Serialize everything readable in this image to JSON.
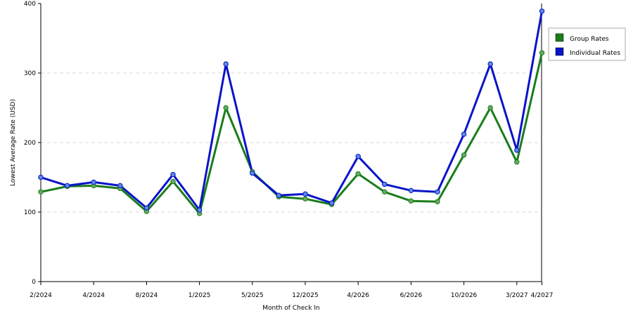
{
  "chart_data": {
    "type": "line",
    "title": "",
    "xlabel": "Month of Check In",
    "ylabel": "Lowest Average Rate (USD)",
    "ylim": [
      0,
      400
    ],
    "yticks": [
      0,
      100,
      200,
      300,
      400
    ],
    "grid": true,
    "legend_position": "right",
    "x_tick_labels": [
      {
        "index": 0,
        "label": "2/2024"
      },
      {
        "index": 2,
        "label": "4/2024"
      },
      {
        "index": 4,
        "label": "8/2024"
      },
      {
        "index": 6,
        "label": "1/2025"
      },
      {
        "index": 8,
        "label": "5/2025"
      },
      {
        "index": 10,
        "label": "12/2025"
      },
      {
        "index": 12,
        "label": "4/2026"
      },
      {
        "index": 14,
        "label": "6/2026"
      },
      {
        "index": 16,
        "label": "10/2026"
      },
      {
        "index": 18,
        "label": "3/2027"
      },
      {
        "index": 19,
        "label": "4/2027"
      }
    ],
    "x_index_positions": [
      0,
      1,
      2,
      3,
      4,
      5,
      6,
      7,
      8,
      9,
      10,
      11,
      12,
      13,
      14,
      15,
      16,
      17,
      18,
      18.95
    ],
    "series": [
      {
        "name": "Group Rates",
        "color": "#1a7d1a",
        "marker_color": "#66aa66",
        "values": [
          129,
          137,
          138,
          134,
          101,
          144,
          98,
          250,
          158,
          122,
          119,
          111,
          155,
          129,
          116,
          115,
          182,
          250,
          172,
          329
        ]
      },
      {
        "name": "Individual Rates",
        "color": "#0a14c8",
        "marker_color": "#5b8be0",
        "values": [
          150,
          138,
          143,
          138,
          106,
          154,
          103,
          313,
          156,
          124,
          126,
          113,
          180,
          140,
          131,
          129,
          212,
          313,
          189,
          389
        ]
      }
    ]
  }
}
